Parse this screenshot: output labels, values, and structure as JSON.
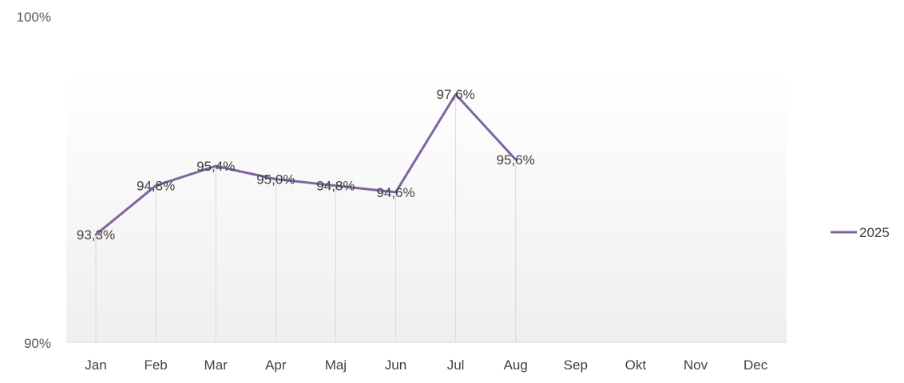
{
  "chart_data": {
    "type": "line",
    "categories": [
      "Jan",
      "Feb",
      "Mar",
      "Apr",
      "Maj",
      "Jun",
      "Jul",
      "Aug",
      "Sep",
      "Okt",
      "Nov",
      "Dec"
    ],
    "series": [
      {
        "name": "2025",
        "values": [
          93.3,
          94.8,
          95.4,
          95.0,
          94.8,
          94.6,
          97.6,
          95.6,
          null,
          null,
          null,
          null
        ],
        "data_labels": [
          "93,3%",
          "94,8%",
          "95,4%",
          "95,0%",
          "94,8%",
          "94,6%",
          "97,6%",
          "95,6%",
          "",
          "",
          "",
          ""
        ],
        "color": "#8064a2"
      }
    ],
    "y_tick_labels": [
      "90%",
      "100%"
    ],
    "ylim": [
      90,
      100
    ],
    "legend_position": "right",
    "drop_lines": true,
    "plot_background": "gradient white to light gray"
  }
}
